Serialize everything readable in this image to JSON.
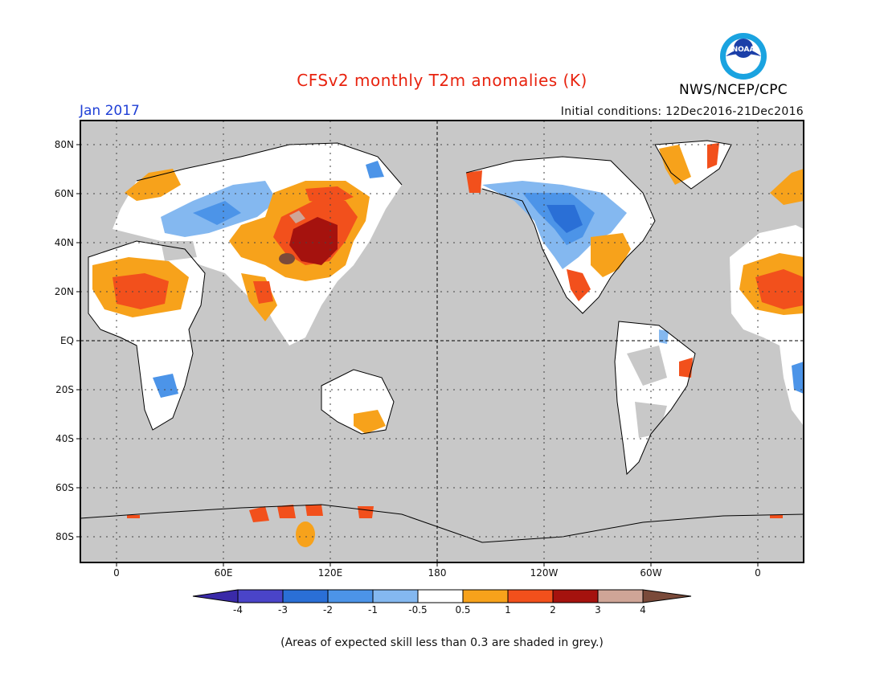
{
  "header": {
    "title": "CFSv2 monthly T2m anomalies (K)",
    "month": "Jan 2017",
    "initial_conditions": "Initial conditions: 12Dec2016-21Dec2016",
    "agency": "NWS/NCEP/CPC",
    "logo_text": "NOAA"
  },
  "axes": {
    "lat_labels": [
      "80N",
      "60N",
      "40N",
      "20N",
      "EQ",
      "20S",
      "40S",
      "60S",
      "80S"
    ],
    "lon_labels": [
      "0",
      "60E",
      "120E",
      "180",
      "120W",
      "60W",
      "0"
    ]
  },
  "colorbar": {
    "labels": [
      "-4",
      "-3",
      "-2",
      "-1",
      "-0.5",
      "0.5",
      "1",
      "2",
      "3",
      "4"
    ],
    "colors": [
      "#3a2aa8",
      "#4a44c8",
      "#2a6fd6",
      "#4c94e8",
      "#84b8f0",
      "#ffffff",
      "#f7a21b",
      "#f2501c",
      "#a5120e",
      "#cfa597",
      "#7a4a3a"
    ],
    "shading_color": "#c8c8c8"
  },
  "footnote": "(Areas of expected skill less than 0.3 are shaded in grey.)"
}
